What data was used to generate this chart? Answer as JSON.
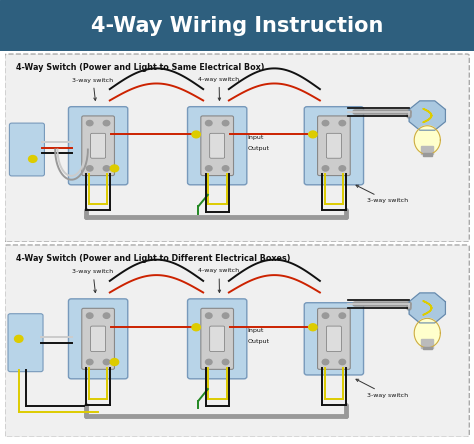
{
  "title": "4-Way Wiring Instruction",
  "title_color": "#ffffff",
  "title_fontsize": 15,
  "title_bg": "#2e5f7e",
  "panel1_title": "4-Way Switch (Power and Light to Same Electrical Box)",
  "panel2_title": "4-Way Switch (Power and Light to Different Electrical Boxes)",
  "panel_bg": "#f0f0f0",
  "panel_border": "#bbbbbb",
  "label_3way_1": "3-way switch",
  "label_4way": "4-way switch",
  "label_input": "Input",
  "label_output": "Output",
  "label_3way_2": "3-way switch",
  "wire_black": "#111111",
  "wire_red": "#cc2200",
  "wire_white": "#cccccc",
  "wire_yellow": "#ddcc00",
  "wire_green": "#228822",
  "wire_gray": "#999999",
  "box_fill": "#b8d4e8",
  "box_edge": "#7799bb",
  "switch_fill": "#cccccc",
  "switch_edge": "#888888",
  "lamp_box_fill": "#aac8e0",
  "lamp_box_edge": "#6688aa",
  "lamp_bulb_fill": "#ffffcc",
  "lamp_bulb_edge": "#ccaa44"
}
